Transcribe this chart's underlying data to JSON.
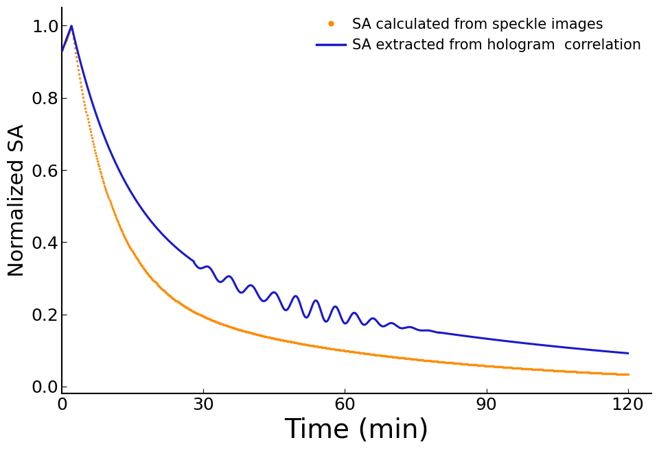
{
  "xlabel": "Time (min)",
  "ylabel": "Normalized SA",
  "xlim": [
    0,
    125
  ],
  "ylim": [
    -0.02,
    1.05
  ],
  "xticks": [
    0,
    30,
    60,
    90,
    120
  ],
  "yticks": [
    0.0,
    0.2,
    0.4,
    0.6,
    0.8,
    1.0
  ],
  "legend_labels": [
    "SA calculated from speckle images",
    "SA extracted from hologram  correlation"
  ],
  "orange_color": "#FF8C00",
  "blue_color": "#1a1acc",
  "xlabel_fontsize": 28,
  "ylabel_fontsize": 22,
  "tick_fontsize": 18,
  "legend_fontsize": 15
}
